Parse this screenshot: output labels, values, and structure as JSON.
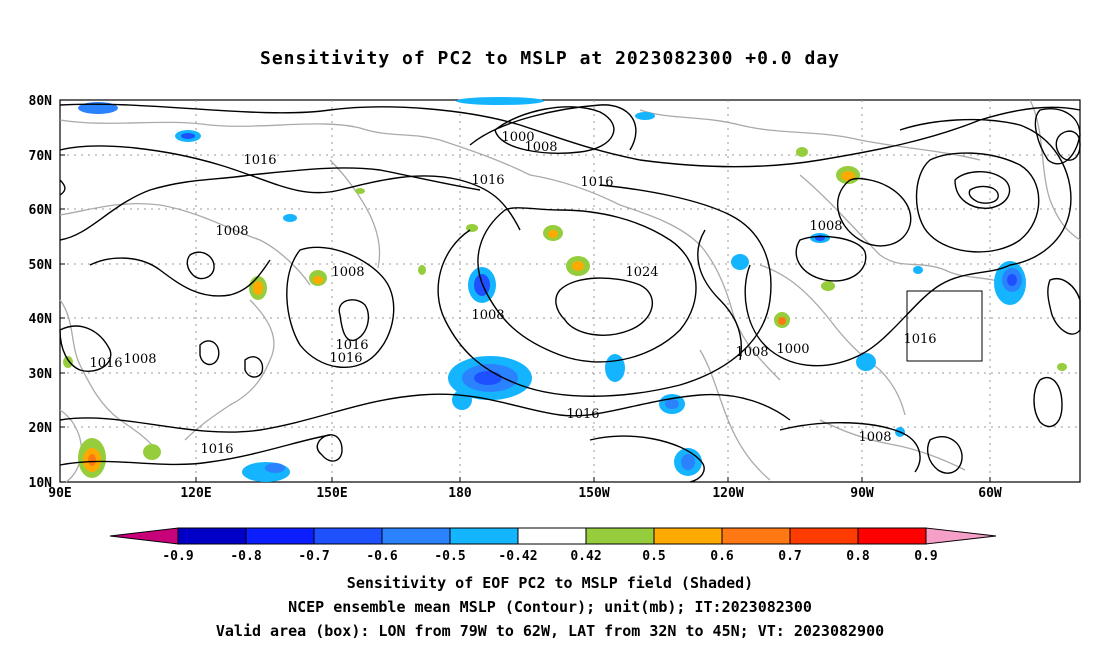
{
  "title": "Sensitivity of PC2 to MSLP at 2023082300 +0.0 day",
  "map": {
    "lon_ticks": [
      "90E",
      "120E",
      "150E",
      "180",
      "150W",
      "120W",
      "90W",
      "60W"
    ],
    "lat_ticks": [
      "80N",
      "70N",
      "60N",
      "50N",
      "40N",
      "30N",
      "20N",
      "10N"
    ],
    "contour_labels": [
      "1000",
      "1008",
      "1016",
      "1016",
      "1016",
      "1008",
      "1008",
      "1024",
      "1008",
      "1016",
      "1016",
      "1016",
      "1008",
      "1016",
      "1016",
      "1008",
      "1000",
      "1008",
      "1016",
      "1008"
    ],
    "valid_box": {
      "lon_min": -79,
      "lon_max": -62,
      "lat_min": 32,
      "lat_max": 45
    }
  },
  "colorbar": {
    "colors": [
      "#c8007a",
      "#0000c8",
      "#0a1eff",
      "#1e50ff",
      "#2a82ff",
      "#14b4ff",
      "#ffffff",
      "#96cd3c",
      "#ffaa00",
      "#ff7814",
      "#ff3c00",
      "#ff0000",
      "#f5a0c8"
    ],
    "labels": [
      "-0.9",
      "-0.8",
      "-0.7",
      "-0.6",
      "-0.5",
      "-0.42",
      "0.42",
      "0.5",
      "0.6",
      "0.7",
      "0.8",
      "0.9"
    ]
  },
  "captions": {
    "line1": "Sensitivity of EOF PC2 to MSLP field (Shaded)",
    "line2": "NCEP ensemble mean MSLP (Contour); unit(mb); IT:2023082300",
    "line3": "Valid area (box): LON from 79W to 62W, LAT from 32N to 45N; VT: 2023082900"
  }
}
